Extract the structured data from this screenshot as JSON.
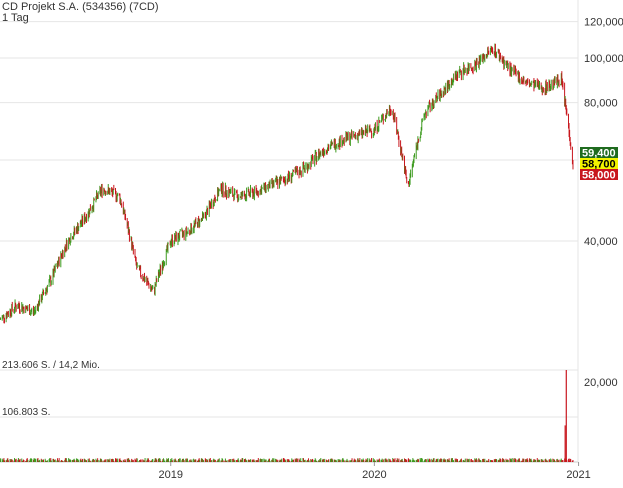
{
  "header": {
    "title": "CD Projekt S.A. (534356) (7CD)",
    "interval": "1 Tag"
  },
  "colors": {
    "up": "#3c9a1e",
    "down": "#c8161d",
    "grid": "#e6e6e6",
    "axis_text": "#333333",
    "badge_high_bg": "#1f6b1f",
    "badge_last_bg": "#f3f300",
    "badge_low_bg": "#c8161d"
  },
  "price_panel": {
    "y_ticks": [
      "40,000",
      "60,000",
      "80,000",
      "100,000",
      "120,000"
    ],
    "badges": {
      "high": "59,400",
      "last": "58,700",
      "low": "58,000"
    }
  },
  "volume_panel": {
    "max_label": "213.606 S. / 14,2 Mio.",
    "mid_label": "106.803 S.",
    "y_tick": "20,000"
  },
  "x_axis": {
    "ticks": [
      "2019",
      "2020",
      "2021"
    ]
  },
  "chart_data": {
    "type": "line",
    "title": "CD Projekt S.A. (534356) (7CD)",
    "scale": "log",
    "ylim": [
      22,
      125
    ],
    "x_ticks": [
      "2019",
      "2020",
      "2021"
    ],
    "y_ticks": [
      40,
      60,
      80,
      100,
      120
    ],
    "series": [
      {
        "x": [
          "2018-03-01",
          "2018-04-01",
          "2018-05-01",
          "2018-06-01",
          "2018-07-01",
          "2018-08-01",
          "2018-09-01",
          "2018-10-01",
          "2018-11-01",
          "2018-12-01",
          "2019-01-01",
          "2019-02-01",
          "2019-03-01",
          "2019-04-01",
          "2019-05-01",
          "2019-06-01",
          "2019-07-01",
          "2019-08-01",
          "2019-09-01",
          "2019-10-01",
          "2019-11-01",
          "2019-12-01",
          "2020-01-01",
          "2020-02-01",
          "2020-03-01",
          "2020-04-01",
          "2020-05-01",
          "2020-06-01",
          "2020-07-01",
          "2020-08-01",
          "2020-09-01",
          "2020-10-01",
          "2020-11-01",
          "2020-12-01",
          "2020-12-22"
        ],
        "values": [
          27,
          29,
          28,
          33,
          40,
          45,
          52,
          50,
          35,
          31,
          40,
          42,
          45,
          52,
          50,
          51,
          53,
          55,
          58,
          63,
          66,
          68,
          70,
          78,
          52,
          76,
          84,
          93,
          97,
          105,
          94,
          88,
          86,
          90,
          58.7
        ]
      }
    ],
    "last_quote": {
      "high": 59.4,
      "last": 58.7,
      "low": 58.0
    },
    "volume": {
      "axis_max": "213.606 S. / 14,2 Mio.",
      "axis_mid": "106.803 S.",
      "spikes": [
        {
          "x": "2020-12-10",
          "value": 213606
        },
        {
          "x": "2020-12-08",
          "value": 85000
        }
      ]
    }
  }
}
